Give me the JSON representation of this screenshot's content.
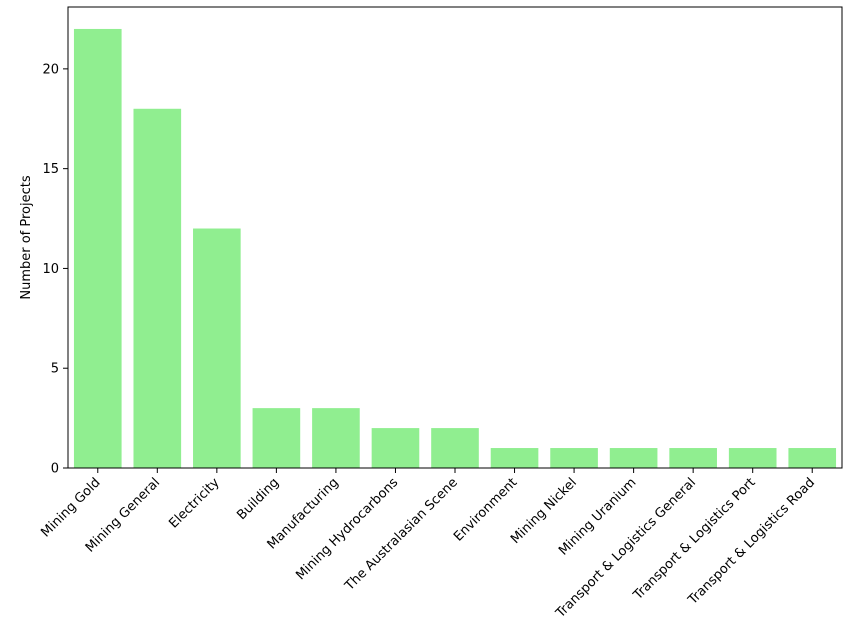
{
  "chart_data": {
    "type": "bar",
    "title": "",
    "xlabel": "",
    "ylabel": "Number of Projects",
    "categories": [
      "Mining Gold",
      "Mining General",
      "Electricity",
      "Building",
      "Manufacturing",
      "Mining Hydrocarbons",
      "The Australasian Scene",
      "Environment",
      "Mining Nickel",
      "Mining Uranium",
      "Transport & Logistics General",
      "Transport & Logistics Port",
      "Transport & Logistics Road"
    ],
    "values": [
      22,
      18,
      12,
      3,
      3,
      2,
      2,
      1,
      1,
      1,
      1,
      1,
      1
    ],
    "ylim": [
      0,
      23.1
    ],
    "yticks": [
      0,
      5,
      10,
      15,
      20
    ],
    "bar_color": "#90ee90",
    "grid": false,
    "legend": "none"
  }
}
